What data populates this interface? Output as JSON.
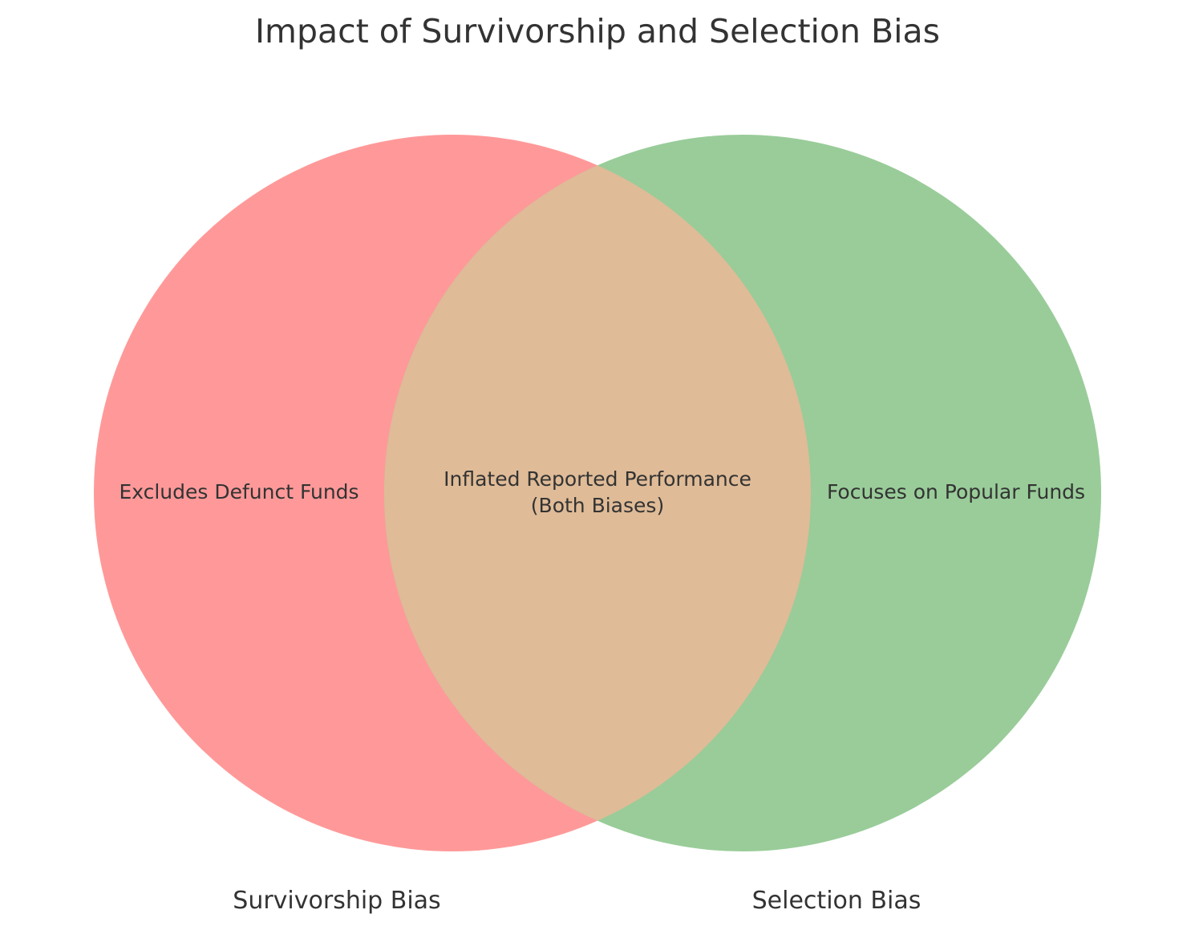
{
  "title": "Impact of Survivorship and Selection Bias",
  "sets": {
    "left": {
      "label": "Survivorship Bias",
      "color": "#ff9999"
    },
    "right": {
      "label": "Selection Bias",
      "color": "#99cc99"
    }
  },
  "regions": {
    "left_only": "Excludes Defunct Funds",
    "right_only": "Focuses on Popular Funds",
    "intersection_line1": "Inflated Reported Performance",
    "intersection_line2": "(Both Biases)",
    "intersection_color": "#dfbb97"
  }
}
